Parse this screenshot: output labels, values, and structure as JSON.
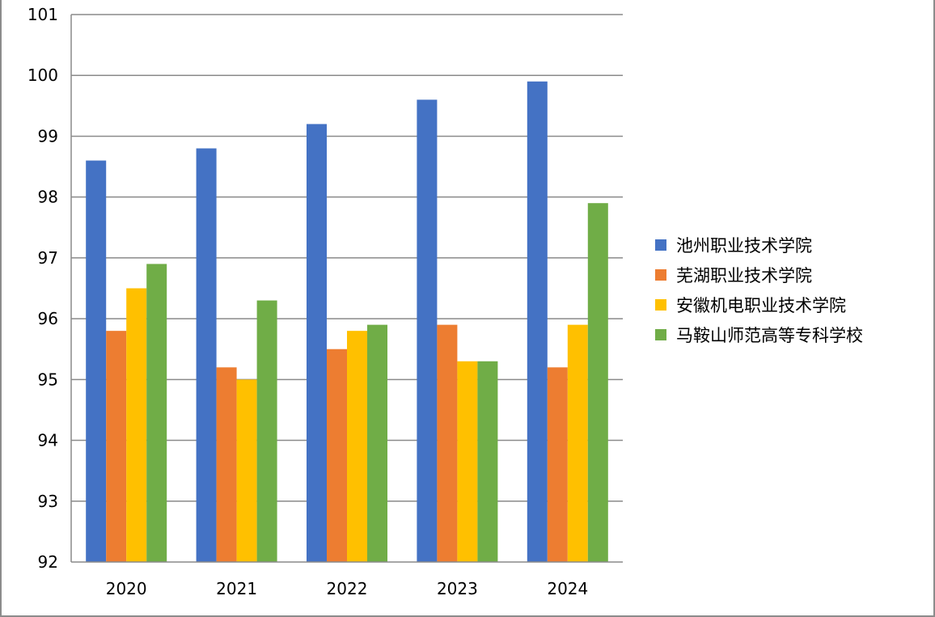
{
  "chart_data": {
    "type": "bar",
    "title": "",
    "xlabel": "",
    "ylabel": "",
    "categories": [
      "2020",
      "2021",
      "2022",
      "2023",
      "2024"
    ],
    "ylim": [
      92,
      101
    ],
    "yticks": [
      92,
      93,
      94,
      95,
      96,
      97,
      98,
      99,
      100,
      101
    ],
    "grid": true,
    "legend_position": "right",
    "series": [
      {
        "name": "池州职业技术学院",
        "color": "#4472C4",
        "values": [
          98.6,
          98.8,
          99.2,
          99.6,
          99.9
        ]
      },
      {
        "name": "芜湖职业技术学院",
        "color": "#ED7D31",
        "values": [
          95.8,
          95.2,
          95.5,
          95.9,
          95.2
        ]
      },
      {
        "name": "安徽机电职业技术学院",
        "color": "#FFC000",
        "values": [
          96.5,
          95.0,
          95.8,
          95.3,
          95.9
        ]
      },
      {
        "name": "马鞍山师范高等专科学校",
        "color": "#70AD47",
        "values": [
          96.9,
          96.3,
          95.9,
          95.3,
          97.9
        ]
      }
    ]
  }
}
